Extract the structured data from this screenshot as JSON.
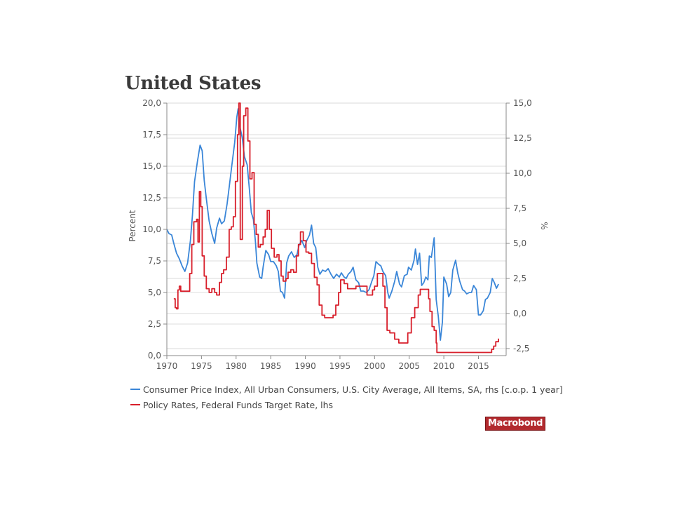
{
  "title": "United States",
  "brand": "Macrobond",
  "chart_data": {
    "type": "line",
    "title": "United States",
    "xlim": [
      1970,
      2019
    ],
    "x_ticks": [
      1970,
      1975,
      1980,
      1985,
      1990,
      1995,
      2000,
      2005,
      2010,
      2015
    ],
    "y_left": {
      "label": "Percent",
      "range": [
        0,
        20
      ],
      "ticks": [
        0,
        2.5,
        5,
        7.5,
        10,
        12.5,
        15,
        17.5,
        20
      ],
      "tick_labels": [
        "0,0",
        "2,5",
        "5,0",
        "7,5",
        "10,0",
        "12,5",
        "15,0",
        "17,5",
        "20,0"
      ]
    },
    "y_right": {
      "label": "%",
      "range": [
        -3,
        15
      ],
      "ticks": [
        -2.5,
        0,
        2.5,
        5,
        7.5,
        10,
        12.5,
        15
      ],
      "tick_labels": [
        "-2,5",
        "0,0",
        "2,5",
        "5,0",
        "7,5",
        "10,0",
        "12,5",
        "15,0"
      ]
    },
    "grid": true,
    "legend_position": "bottom",
    "series": [
      {
        "name": "Consumer Price Index, All Urban Consumers, U.S. City Average, All Items, SA, rhs [c.o.p. 1 year]",
        "axis": "right",
        "color": "#3a86d8",
        "points": [
          [
            1970.0,
            6.0
          ],
          [
            1970.3,
            5.7
          ],
          [
            1970.7,
            5.6
          ],
          [
            1971.0,
            5.0
          ],
          [
            1971.4,
            4.3
          ],
          [
            1971.8,
            3.9
          ],
          [
            1972.2,
            3.4
          ],
          [
            1972.6,
            3.0
          ],
          [
            1973.0,
            3.6
          ],
          [
            1973.4,
            5.2
          ],
          [
            1973.7,
            7.0
          ],
          [
            1974.0,
            9.4
          ],
          [
            1974.4,
            10.8
          ],
          [
            1974.8,
            12.0
          ],
          [
            1975.1,
            11.6
          ],
          [
            1975.4,
            9.5
          ],
          [
            1975.7,
            8.2
          ],
          [
            1976.1,
            6.6
          ],
          [
            1976.5,
            5.7
          ],
          [
            1976.9,
            5.0
          ],
          [
            1977.2,
            6.1
          ],
          [
            1977.6,
            6.8
          ],
          [
            1977.9,
            6.4
          ],
          [
            1978.3,
            6.6
          ],
          [
            1978.7,
            7.8
          ],
          [
            1979.0,
            9.0
          ],
          [
            1979.4,
            10.6
          ],
          [
            1979.8,
            12.2
          ],
          [
            1980.1,
            14.0
          ],
          [
            1980.3,
            14.6
          ],
          [
            1980.6,
            13.2
          ],
          [
            1980.9,
            12.5
          ],
          [
            1981.2,
            11.2
          ],
          [
            1981.6,
            10.6
          ],
          [
            1981.9,
            9.0
          ],
          [
            1982.2,
            7.2
          ],
          [
            1982.5,
            6.7
          ],
          [
            1982.8,
            5.1
          ],
          [
            1983.0,
            3.6
          ],
          [
            1983.4,
            2.6
          ],
          [
            1983.7,
            2.5
          ],
          [
            1983.9,
            3.3
          ],
          [
            1984.3,
            4.5
          ],
          [
            1984.7,
            4.2
          ],
          [
            1985.0,
            3.7
          ],
          [
            1985.4,
            3.7
          ],
          [
            1985.8,
            3.4
          ],
          [
            1986.1,
            3.0
          ],
          [
            1986.4,
            1.6
          ],
          [
            1986.7,
            1.5
          ],
          [
            1987.0,
            1.1
          ],
          [
            1987.3,
            3.6
          ],
          [
            1987.6,
            4.1
          ],
          [
            1988.0,
            4.4
          ],
          [
            1988.4,
            4.0
          ],
          [
            1988.8,
            4.2
          ],
          [
            1989.1,
            4.9
          ],
          [
            1989.5,
            5.2
          ],
          [
            1989.9,
            4.7
          ],
          [
            1990.2,
            5.2
          ],
          [
            1990.6,
            5.6
          ],
          [
            1990.9,
            6.3
          ],
          [
            1991.2,
            5.0
          ],
          [
            1991.5,
            4.7
          ],
          [
            1991.8,
            3.3
          ],
          [
            1992.1,
            2.8
          ],
          [
            1992.5,
            3.1
          ],
          [
            1992.9,
            3.0
          ],
          [
            1993.3,
            3.2
          ],
          [
            1993.7,
            2.8
          ],
          [
            1994.1,
            2.5
          ],
          [
            1994.5,
            2.8
          ],
          [
            1994.9,
            2.6
          ],
          [
            1995.2,
            2.9
          ],
          [
            1995.6,
            2.6
          ],
          [
            1995.9,
            2.5
          ],
          [
            1996.2,
            2.8
          ],
          [
            1996.6,
            3.0
          ],
          [
            1996.9,
            3.3
          ],
          [
            1997.3,
            2.4
          ],
          [
            1997.7,
            2.2
          ],
          [
            1998.0,
            1.6
          ],
          [
            1998.4,
            1.6
          ],
          [
            1998.8,
            1.5
          ],
          [
            1999.2,
            1.7
          ],
          [
            1999.6,
            2.3
          ],
          [
            1999.9,
            2.7
          ],
          [
            2000.2,
            3.7
          ],
          [
            2000.6,
            3.5
          ],
          [
            2000.9,
            3.4
          ],
          [
            2001.2,
            3.0
          ],
          [
            2001.6,
            2.7
          ],
          [
            2001.9,
            1.5
          ],
          [
            2002.1,
            1.1
          ],
          [
            2002.5,
            1.6
          ],
          [
            2002.9,
            2.3
          ],
          [
            2003.2,
            3.0
          ],
          [
            2003.6,
            2.1
          ],
          [
            2003.9,
            1.9
          ],
          [
            2004.3,
            2.7
          ],
          [
            2004.7,
            2.8
          ],
          [
            2004.9,
            3.3
          ],
          [
            2005.3,
            3.1
          ],
          [
            2005.7,
            3.8
          ],
          [
            2005.9,
            4.6
          ],
          [
            2006.2,
            3.5
          ],
          [
            2006.5,
            4.3
          ],
          [
            2006.8,
            2.0
          ],
          [
            2007.1,
            2.2
          ],
          [
            2007.4,
            2.6
          ],
          [
            2007.7,
            2.4
          ],
          [
            2007.9,
            4.1
          ],
          [
            2008.2,
            4.0
          ],
          [
            2008.6,
            5.4
          ],
          [
            2008.9,
            1.0
          ],
          [
            2009.2,
            -0.2
          ],
          [
            2009.5,
            -1.9
          ],
          [
            2009.8,
            -0.6
          ],
          [
            2010.0,
            2.6
          ],
          [
            2010.4,
            2.1
          ],
          [
            2010.7,
            1.2
          ],
          [
            2011.0,
            1.5
          ],
          [
            2011.3,
            3.1
          ],
          [
            2011.7,
            3.8
          ],
          [
            2012.0,
            2.9
          ],
          [
            2012.3,
            2.3
          ],
          [
            2012.7,
            1.7
          ],
          [
            2013.0,
            1.6
          ],
          [
            2013.3,
            1.4
          ],
          [
            2013.7,
            1.5
          ],
          [
            2014.0,
            1.5
          ],
          [
            2014.3,
            2.0
          ],
          [
            2014.7,
            1.7
          ],
          [
            2015.0,
            -0.1
          ],
          [
            2015.3,
            -0.1
          ],
          [
            2015.7,
            0.2
          ],
          [
            2016.0,
            1.0
          ],
          [
            2016.3,
            1.1
          ],
          [
            2016.7,
            1.5
          ],
          [
            2017.0,
            2.5
          ],
          [
            2017.3,
            2.2
          ],
          [
            2017.6,
            1.8
          ],
          [
            2017.9,
            2.1
          ]
        ]
      },
      {
        "name": "Policy Rates, Federal Funds Target Rate, lhs",
        "axis": "left",
        "color": "#d81f2b",
        "points": [
          [
            1971.0,
            4.5
          ],
          [
            1971.2,
            3.8
          ],
          [
            1971.4,
            3.7
          ],
          [
            1971.6,
            5.2
          ],
          [
            1971.8,
            5.5
          ],
          [
            1972.0,
            5.1
          ],
          [
            1972.5,
            5.1
          ],
          [
            1973.0,
            5.1
          ],
          [
            1973.3,
            6.5
          ],
          [
            1973.6,
            8.8
          ],
          [
            1973.9,
            10.6
          ],
          [
            1974.3,
            10.8
          ],
          [
            1974.5,
            9.0
          ],
          [
            1974.7,
            13.0
          ],
          [
            1974.9,
            11.8
          ],
          [
            1975.1,
            7.9
          ],
          [
            1975.4,
            6.3
          ],
          [
            1975.7,
            5.3
          ],
          [
            1976.1,
            5.0
          ],
          [
            1976.5,
            5.3
          ],
          [
            1976.9,
            5.0
          ],
          [
            1977.2,
            4.8
          ],
          [
            1977.6,
            5.8
          ],
          [
            1977.9,
            6.5
          ],
          [
            1978.2,
            6.8
          ],
          [
            1978.6,
            7.8
          ],
          [
            1979.0,
            10.0
          ],
          [
            1979.3,
            10.2
          ],
          [
            1979.6,
            11.0
          ],
          [
            1979.9,
            13.8
          ],
          [
            1980.2,
            17.5
          ],
          [
            1980.4,
            20.0
          ],
          [
            1980.6,
            9.2
          ],
          [
            1980.9,
            15.0
          ],
          [
            1981.1,
            19.0
          ],
          [
            1981.4,
            19.6
          ],
          [
            1981.7,
            17.0
          ],
          [
            1982.0,
            14.0
          ],
          [
            1982.3,
            14.5
          ],
          [
            1982.6,
            10.4
          ],
          [
            1982.9,
            9.6
          ],
          [
            1983.2,
            8.6
          ],
          [
            1983.5,
            8.8
          ],
          [
            1983.9,
            9.4
          ],
          [
            1984.2,
            10.0
          ],
          [
            1984.5,
            11.5
          ],
          [
            1984.8,
            10.0
          ],
          [
            1985.1,
            8.5
          ],
          [
            1985.5,
            7.8
          ],
          [
            1985.9,
            8.0
          ],
          [
            1986.2,
            7.5
          ],
          [
            1986.5,
            6.3
          ],
          [
            1986.8,
            5.9
          ],
          [
            1987.2,
            6.1
          ],
          [
            1987.5,
            6.6
          ],
          [
            1987.9,
            6.8
          ],
          [
            1988.3,
            6.6
          ],
          [
            1988.7,
            7.9
          ],
          [
            1989.0,
            8.8
          ],
          [
            1989.3,
            9.8
          ],
          [
            1989.7,
            9.1
          ],
          [
            1990.1,
            8.2
          ],
          [
            1990.5,
            8.1
          ],
          [
            1990.9,
            7.3
          ],
          [
            1991.3,
            6.2
          ],
          [
            1991.7,
            5.6
          ],
          [
            1992.0,
            4.0
          ],
          [
            1992.4,
            3.2
          ],
          [
            1992.8,
            3.0
          ],
          [
            1993.5,
            3.0
          ],
          [
            1994.0,
            3.2
          ],
          [
            1994.4,
            4.0
          ],
          [
            1994.8,
            5.0
          ],
          [
            1995.1,
            6.0
          ],
          [
            1995.6,
            5.7
          ],
          [
            1996.1,
            5.3
          ],
          [
            1997.0,
            5.3
          ],
          [
            1997.3,
            5.5
          ],
          [
            1998.0,
            5.5
          ],
          [
            1998.6,
            5.5
          ],
          [
            1998.9,
            4.8
          ],
          [
            1999.3,
            4.8
          ],
          [
            1999.7,
            5.2
          ],
          [
            2000.0,
            5.5
          ],
          [
            2000.4,
            6.5
          ],
          [
            2000.9,
            6.5
          ],
          [
            2001.2,
            5.5
          ],
          [
            2001.5,
            3.8
          ],
          [
            2001.8,
            2.0
          ],
          [
            2002.2,
            1.8
          ],
          [
            2002.9,
            1.3
          ],
          [
            2003.5,
            1.0
          ],
          [
            2004.4,
            1.0
          ],
          [
            2004.8,
            1.8
          ],
          [
            2005.3,
            3.0
          ],
          [
            2005.8,
            3.8
          ],
          [
            2006.3,
            4.8
          ],
          [
            2006.6,
            5.25
          ],
          [
            2007.6,
            5.25
          ],
          [
            2007.8,
            4.5
          ],
          [
            2008.0,
            3.5
          ],
          [
            2008.3,
            2.3
          ],
          [
            2008.6,
            2.0
          ],
          [
            2008.9,
            1.0
          ],
          [
            2009.0,
            0.25
          ],
          [
            2015.9,
            0.25
          ],
          [
            2016.9,
            0.5
          ],
          [
            2017.2,
            0.75
          ],
          [
            2017.5,
            1.1
          ],
          [
            2017.9,
            1.35
          ]
        ]
      }
    ]
  }
}
